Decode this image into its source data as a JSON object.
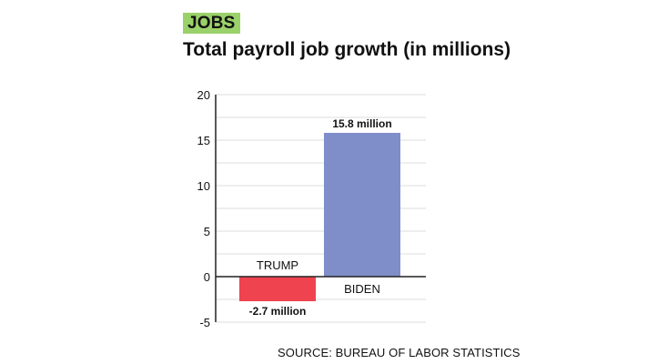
{
  "header": {
    "tag": "JOBS",
    "title": "Total payroll job growth (in millions)"
  },
  "colors": {
    "tag_bg": "#9bd16a",
    "trump": "#f04350",
    "biden": "#7f8ec8"
  },
  "chart_data": {
    "type": "bar",
    "title": "Total payroll job growth (in millions)",
    "categories": [
      "TRUMP",
      "BIDEN"
    ],
    "values": [
      -2.7,
      15.8
    ],
    "data_labels": [
      "-2.7 million",
      "15.8 million"
    ],
    "bar_colors": [
      "#f04350",
      "#7f8ec8"
    ],
    "ylim": [
      -5,
      20
    ],
    "yticks": [
      -5,
      0,
      5,
      10,
      15,
      20
    ],
    "grid": true,
    "xlabel": "",
    "ylabel": ""
  },
  "source": "SOURCE: BUREAU OF LABOR STATISTICS"
}
